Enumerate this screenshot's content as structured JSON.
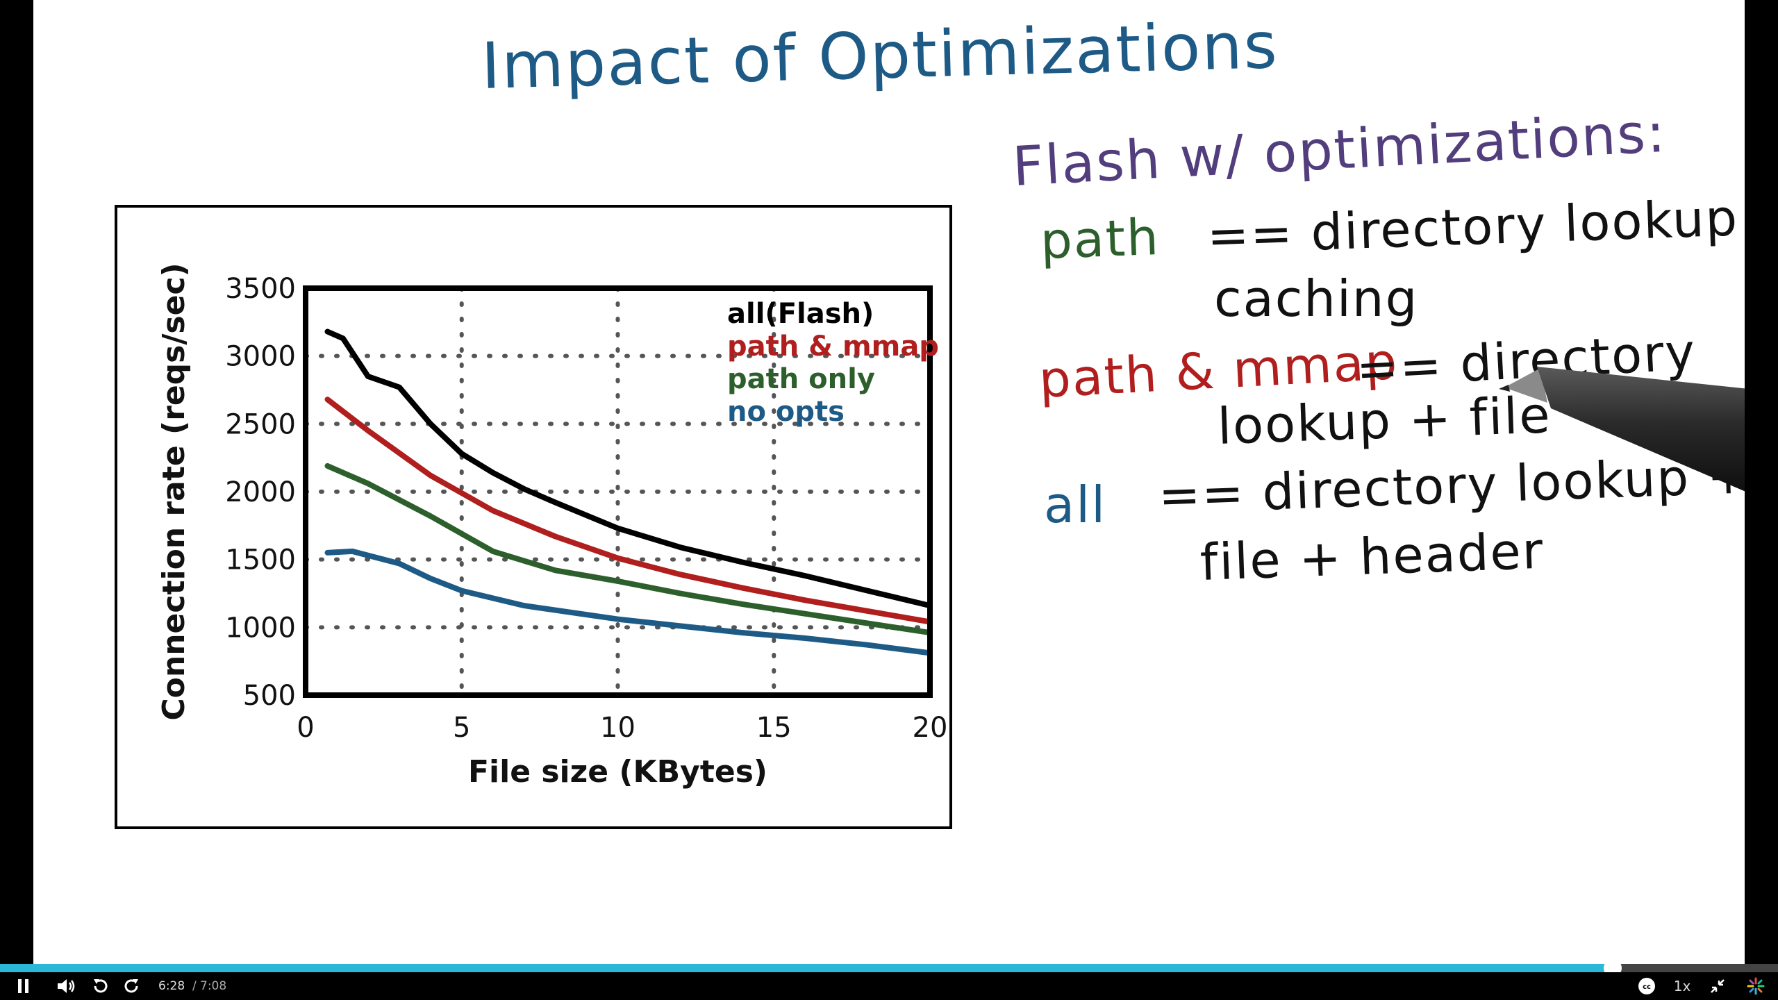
{
  "slide": {
    "title": "Impact of Optimizations",
    "notes": {
      "heading": "Flash w/ optimizations:",
      "path_key": "path",
      "path_desc": "== directory lookup",
      "path_desc2": "caching",
      "mmap_key": "path & mmap",
      "mmap_desc": "== directory",
      "mmap_desc2": "lookup + file",
      "all_key": "all",
      "all_desc": "== directory lookup +",
      "all_desc2": "file + header"
    }
  },
  "chart_data": {
    "type": "line",
    "xlabel": "File size (KBytes)",
    "ylabel": "Connection rate (reqs/sec)",
    "xlim": [
      0,
      20
    ],
    "ylim": [
      500,
      3500
    ],
    "xticks": [
      0,
      5,
      10,
      15,
      20
    ],
    "yticks": [
      500,
      1000,
      1500,
      2000,
      2500,
      3000,
      3500
    ],
    "grid": true,
    "legend_position": "top-right",
    "series": [
      {
        "name": "all(Flash)",
        "color": "#000000",
        "x": [
          0.7,
          1.2,
          2,
          3,
          4,
          5,
          6,
          7,
          8,
          10,
          12,
          14,
          16,
          18,
          20
        ],
        "y": [
          3180,
          3130,
          2850,
          2770,
          2500,
          2280,
          2140,
          2020,
          1920,
          1730,
          1590,
          1480,
          1380,
          1270,
          1160
        ]
      },
      {
        "name": "path & mmap",
        "color": "#b01e1e",
        "x": [
          0.7,
          2,
          4,
          6,
          8,
          10,
          12,
          14,
          16,
          18,
          20
        ],
        "y": [
          2680,
          2450,
          2120,
          1860,
          1670,
          1510,
          1390,
          1290,
          1200,
          1120,
          1040
        ]
      },
      {
        "name": "path only",
        "color": "#2c5f2c",
        "x": [
          0.7,
          2,
          4,
          6,
          8,
          10,
          12,
          14,
          16,
          18,
          20
        ],
        "y": [
          2190,
          2060,
          1820,
          1560,
          1420,
          1340,
          1250,
          1170,
          1100,
          1030,
          960
        ]
      },
      {
        "name": "no opts",
        "color": "#1e5a86",
        "x": [
          0.7,
          1.5,
          3,
          4,
          5,
          7,
          10,
          12,
          14,
          16,
          18,
          20
        ],
        "y": [
          1550,
          1560,
          1470,
          1360,
          1270,
          1160,
          1060,
          1010,
          960,
          920,
          870,
          810
        ]
      }
    ]
  },
  "player": {
    "current_time": "6:28",
    "separator": "/",
    "total_time": "7:08",
    "progress": 0.907,
    "speed": "1x",
    "colors": {
      "progress": "#2bb8d8",
      "track": "#444444"
    },
    "icons": [
      "pause-icon",
      "volume-icon",
      "rewind-icon",
      "forward-icon",
      "captions-icon",
      "exit-fullscreen-icon",
      "logo-icon"
    ]
  }
}
